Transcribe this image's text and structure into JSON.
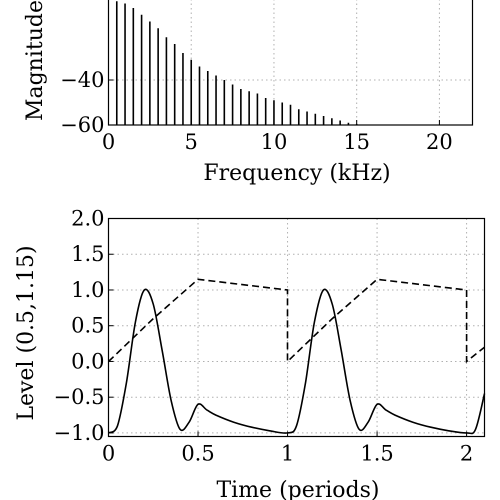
{
  "chart_data": [
    {
      "type": "bar",
      "title": "",
      "xlabel": "Frequency (kHz)",
      "ylabel": "Magnitude",
      "xlim": [
        0,
        22
      ],
      "ylim": [
        -60,
        0
      ],
      "xticks": [
        "0",
        "5",
        "10",
        "15",
        "20"
      ],
      "yticks": [
        "−40",
        "−60"
      ],
      "grid": true,
      "series": [
        {
          "x": [
            0.5,
            1.0,
            1.5,
            2.0,
            2.5,
            3.0,
            3.5,
            4.0,
            4.5,
            5.0,
            5.5,
            6.0,
            6.5,
            7.0,
            7.5,
            8.0,
            8.5,
            9.0,
            9.5,
            10.0,
            10.5,
            11.0,
            11.5,
            12.0,
            12.5,
            13.0,
            13.5,
            14.0,
            14.5,
            15.0
          ],
          "values": [
            -5,
            -6,
            -8,
            -11,
            -14,
            -17,
            -21,
            -24,
            -28,
            -31,
            -34,
            -36,
            -38,
            -40,
            -42,
            -44,
            -45,
            -46,
            -48,
            -49,
            -50,
            -51,
            -53,
            -54,
            -55,
            -56,
            -57,
            -58,
            -59,
            -59.5
          ]
        }
      ]
    },
    {
      "type": "line",
      "title": "",
      "xlabel": "Time (periods)",
      "ylabel": "Level (0.5,1.15)",
      "xlim": [
        0,
        2.1
      ],
      "ylim": [
        -1.05,
        2.0
      ],
      "xticks": [
        "0",
        "0.5",
        "1",
        "1.5",
        "2"
      ],
      "yticks": [
        "−1.0",
        "−0.5",
        "0.0",
        "0.5",
        "1.0",
        "1.5",
        "2.0"
      ],
      "grid": true,
      "series": [
        {
          "style": "solid",
          "x": [
            0,
            0.05,
            0.1,
            0.15,
            0.2,
            0.25,
            0.3,
            0.35,
            0.4,
            0.45,
            0.5,
            0.55,
            0.6,
            0.7,
            0.8,
            0.9,
            1.0,
            1.05,
            1.1,
            1.15,
            1.2,
            1.25,
            1.3,
            1.35,
            1.4,
            1.45,
            1.5,
            1.55,
            1.6,
            1.7,
            1.8,
            1.9,
            2.0,
            2.05,
            2.1
          ],
          "values": [
            -1.0,
            -0.9,
            -0.3,
            0.55,
            1.0,
            0.8,
            0.15,
            -0.55,
            -0.95,
            -0.85,
            -0.6,
            -0.68,
            -0.75,
            -0.85,
            -0.92,
            -0.97,
            -1.0,
            -0.9,
            -0.3,
            0.55,
            1.0,
            0.8,
            0.15,
            -0.55,
            -0.95,
            -0.85,
            -0.6,
            -0.68,
            -0.75,
            -0.85,
            -0.92,
            -0.97,
            -1.0,
            -0.95,
            -0.45
          ]
        },
        {
          "style": "dashed",
          "x": [
            0,
            0.25,
            0.5,
            1.0,
            1.0,
            1.25,
            1.5,
            2.0,
            2.0,
            2.1
          ],
          "values": [
            0.0,
            0.6,
            1.15,
            1.0,
            0.0,
            0.6,
            1.15,
            1.0,
            0.0,
            0.2
          ]
        }
      ]
    }
  ]
}
